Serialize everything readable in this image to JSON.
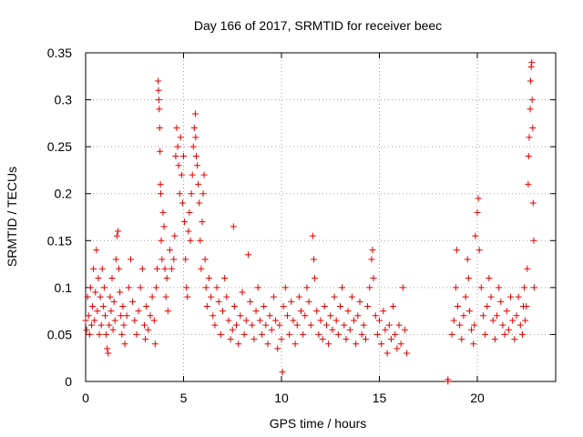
{
  "chart_data": {
    "type": "scatter",
    "title": "Day 166 of 2017, SRMTID for receiver beec",
    "xlabel": "GPS time / hours",
    "ylabel": "SRMTID / TECUs",
    "xlim": [
      0,
      24
    ],
    "ylim": [
      0,
      0.35
    ],
    "xticks": [
      0,
      5,
      10,
      15,
      20
    ],
    "xtick_labels": [
      "0",
      "5",
      "10",
      "15",
      "20"
    ],
    "yticks": [
      0,
      0.05,
      0.1,
      0.15,
      0.2,
      0.25,
      0.3,
      0.35
    ],
    "ytick_labels": [
      "0",
      "0.05",
      "0.1",
      "0.15",
      "0.2",
      "0.25",
      "0.3",
      "0.35"
    ],
    "grid": true,
    "marker": "+",
    "color": "#e00000",
    "series": [
      {
        "name": "SRMTID",
        "points": [
          [
            0.0,
            0.065
          ],
          [
            0.05,
            0.055
          ],
          [
            0.1,
            0.09
          ],
          [
            0.15,
            0.07
          ],
          [
            0.2,
            0.05
          ],
          [
            0.25,
            0.1
          ],
          [
            0.3,
            0.06
          ],
          [
            0.35,
            0.08
          ],
          [
            0.4,
            0.12
          ],
          [
            0.45,
            0.065
          ],
          [
            0.5,
            0.095
          ],
          [
            0.55,
            0.14
          ],
          [
            0.6,
            0.075
          ],
          [
            0.65,
            0.11
          ],
          [
            0.7,
            0.05
          ],
          [
            0.75,
            0.09
          ],
          [
            0.8,
            0.06
          ],
          [
            0.85,
            0.12
          ],
          [
            0.9,
            0.08
          ],
          [
            0.95,
            0.1
          ],
          [
            1.0,
            0.07
          ],
          [
            1.05,
            0.05
          ],
          [
            1.1,
            0.035
          ],
          [
            1.15,
            0.03
          ],
          [
            1.2,
            0.06
          ],
          [
            1.25,
            0.09
          ],
          [
            1.3,
            0.075
          ],
          [
            1.35,
            0.11
          ],
          [
            1.4,
            0.055
          ],
          [
            1.45,
            0.085
          ],
          [
            1.5,
            0.065
          ],
          [
            1.55,
            0.13
          ],
          [
            1.6,
            0.155
          ],
          [
            1.65,
            0.16
          ],
          [
            1.7,
            0.12
          ],
          [
            1.75,
            0.095
          ],
          [
            1.8,
            0.07
          ],
          [
            1.85,
            0.05
          ],
          [
            1.9,
            0.08
          ],
          [
            1.95,
            0.06
          ],
          [
            2.0,
            0.04
          ],
          [
            2.1,
            0.07
          ],
          [
            2.2,
            0.1
          ],
          [
            2.3,
            0.13
          ],
          [
            2.4,
            0.085
          ],
          [
            2.5,
            0.065
          ],
          [
            2.6,
            0.05
          ],
          [
            2.7,
            0.075
          ],
          [
            2.8,
            0.1
          ],
          [
            2.9,
            0.12
          ],
          [
            3.0,
            0.06
          ],
          [
            3.05,
            0.045
          ],
          [
            3.1,
            0.08
          ],
          [
            3.2,
            0.055
          ],
          [
            3.3,
            0.07
          ],
          [
            3.4,
            0.09
          ],
          [
            3.5,
            0.065
          ],
          [
            3.55,
            0.04
          ],
          [
            3.6,
            0.1
          ],
          [
            3.65,
            0.12
          ],
          [
            3.7,
            0.32
          ],
          [
            3.72,
            0.31
          ],
          [
            3.74,
            0.3
          ],
          [
            3.76,
            0.29
          ],
          [
            3.78,
            0.27
          ],
          [
            3.8,
            0.245
          ],
          [
            3.82,
            0.21
          ],
          [
            3.84,
            0.2
          ],
          [
            3.86,
            0.15
          ],
          [
            3.9,
            0.13
          ],
          [
            3.95,
            0.18
          ],
          [
            4.0,
            0.165
          ],
          [
            4.05,
            0.12
          ],
          [
            4.1,
            0.09
          ],
          [
            4.15,
            0.11
          ],
          [
            4.2,
            0.075
          ],
          [
            4.3,
            0.14
          ],
          [
            4.4,
            0.12
          ],
          [
            4.5,
            0.13
          ],
          [
            4.55,
            0.155
          ],
          [
            4.6,
            0.24
          ],
          [
            4.65,
            0.27
          ],
          [
            4.7,
            0.25
          ],
          [
            4.75,
            0.23
          ],
          [
            4.8,
            0.2
          ],
          [
            4.85,
            0.26
          ],
          [
            4.9,
            0.22
          ],
          [
            4.95,
            0.19
          ],
          [
            5.0,
            0.24
          ],
          [
            5.05,
            0.17
          ],
          [
            5.1,
            0.13
          ],
          [
            5.15,
            0.1
          ],
          [
            5.2,
            0.09
          ],
          [
            5.25,
            0.16
          ],
          [
            5.3,
            0.18
          ],
          [
            5.35,
            0.15
          ],
          [
            5.4,
            0.2
          ],
          [
            5.45,
            0.22
          ],
          [
            5.5,
            0.25
          ],
          [
            5.55,
            0.27
          ],
          [
            5.6,
            0.285
          ],
          [
            5.62,
            0.26
          ],
          [
            5.65,
            0.24
          ],
          [
            5.7,
            0.23
          ],
          [
            5.75,
            0.21
          ],
          [
            5.8,
            0.19
          ],
          [
            5.85,
            0.15
          ],
          [
            5.9,
            0.12
          ],
          [
            5.95,
            0.17
          ],
          [
            6.0,
            0.2
          ],
          [
            6.05,
            0.22
          ],
          [
            6.1,
            0.13
          ],
          [
            6.15,
            0.1
          ],
          [
            6.2,
            0.08
          ],
          [
            6.3,
            0.11
          ],
          [
            6.4,
            0.09
          ],
          [
            6.5,
            0.07
          ],
          [
            6.6,
            0.06
          ],
          [
            6.7,
            0.1
          ],
          [
            6.8,
            0.085
          ],
          [
            6.9,
            0.05
          ],
          [
            7.0,
            0.075
          ],
          [
            7.1,
            0.11
          ],
          [
            7.2,
            0.09
          ],
          [
            7.3,
            0.065
          ],
          [
            7.4,
            0.045
          ],
          [
            7.5,
            0.055
          ],
          [
            7.55,
            0.165
          ],
          [
            7.6,
            0.08
          ],
          [
            7.7,
            0.06
          ],
          [
            7.8,
            0.04
          ],
          [
            7.9,
            0.07
          ],
          [
            8.0,
            0.095
          ],
          [
            8.1,
            0.05
          ],
          [
            8.2,
            0.065
          ],
          [
            8.3,
            0.135
          ],
          [
            8.4,
            0.085
          ],
          [
            8.5,
            0.06
          ],
          [
            8.6,
            0.045
          ],
          [
            8.7,
            0.075
          ],
          [
            8.8,
            0.1
          ],
          [
            8.9,
            0.065
          ],
          [
            9.0,
            0.05
          ],
          [
            9.1,
            0.08
          ],
          [
            9.2,
            0.06
          ],
          [
            9.3,
            0.04
          ],
          [
            9.4,
            0.07
          ],
          [
            9.5,
            0.055
          ],
          [
            9.6,
            0.09
          ],
          [
            9.7,
            0.065
          ],
          [
            9.8,
            0.035
          ],
          [
            9.9,
            0.06
          ],
          [
            10.0,
            0.045
          ],
          [
            10.05,
            0.01
          ],
          [
            10.1,
            0.08
          ],
          [
            10.2,
            0.1
          ],
          [
            10.3,
            0.07
          ],
          [
            10.4,
            0.05
          ],
          [
            10.5,
            0.085
          ],
          [
            10.6,
            0.065
          ],
          [
            10.7,
            0.04
          ],
          [
            10.8,
            0.06
          ],
          [
            10.9,
            0.09
          ],
          [
            11.0,
            0.075
          ],
          [
            11.1,
            0.05
          ],
          [
            11.2,
            0.07
          ],
          [
            11.3,
            0.1
          ],
          [
            11.4,
            0.085
          ],
          [
            11.5,
            0.06
          ],
          [
            11.6,
            0.155
          ],
          [
            11.65,
            0.13
          ],
          [
            11.7,
            0.11
          ],
          [
            11.8,
            0.075
          ],
          [
            11.9,
            0.05
          ],
          [
            12.0,
            0.065
          ],
          [
            12.1,
            0.045
          ],
          [
            12.2,
            0.08
          ],
          [
            12.3,
            0.06
          ],
          [
            12.4,
            0.04
          ],
          [
            12.5,
            0.07
          ],
          [
            12.6,
            0.055
          ],
          [
            12.7,
            0.09
          ],
          [
            12.8,
            0.065
          ],
          [
            12.9,
            0.05
          ],
          [
            13.0,
            0.08
          ],
          [
            13.1,
            0.1
          ],
          [
            13.2,
            0.06
          ],
          [
            13.3,
            0.045
          ],
          [
            13.4,
            0.075
          ],
          [
            13.5,
            0.055
          ],
          [
            13.6,
            0.09
          ],
          [
            13.7,
            0.065
          ],
          [
            13.8,
            0.04
          ],
          [
            13.9,
            0.07
          ],
          [
            14.0,
            0.085
          ],
          [
            14.1,
            0.05
          ],
          [
            14.2,
            0.06
          ],
          [
            14.3,
            0.045
          ],
          [
            14.4,
            0.08
          ],
          [
            14.5,
            0.1
          ],
          [
            14.6,
            0.13
          ],
          [
            14.65,
            0.14
          ],
          [
            14.7,
            0.11
          ],
          [
            14.8,
            0.07
          ],
          [
            14.9,
            0.05
          ],
          [
            15.0,
            0.065
          ],
          [
            15.1,
            0.04
          ],
          [
            15.2,
            0.075
          ],
          [
            15.3,
            0.055
          ],
          [
            15.4,
            0.03
          ],
          [
            15.5,
            0.06
          ],
          [
            15.6,
            0.045
          ],
          [
            15.7,
            0.08
          ],
          [
            15.8,
            0.05
          ],
          [
            15.9,
            0.035
          ],
          [
            16.0,
            0.06
          ],
          [
            16.1,
            0.04
          ],
          [
            16.2,
            0.1
          ],
          [
            16.3,
            0.055
          ],
          [
            16.4,
            0.03
          ],
          [
            18.5,
            0.0
          ],
          [
            18.5,
            0.002
          ],
          [
            18.7,
            0.05
          ],
          [
            18.8,
            0.065
          ],
          [
            18.9,
            0.1
          ],
          [
            18.95,
            0.14
          ],
          [
            19.0,
            0.08
          ],
          [
            19.1,
            0.06
          ],
          [
            19.2,
            0.045
          ],
          [
            19.3,
            0.07
          ],
          [
            19.4,
            0.09
          ],
          [
            19.5,
            0.13
          ],
          [
            19.55,
            0.11
          ],
          [
            19.6,
            0.075
          ],
          [
            19.7,
            0.055
          ],
          [
            19.8,
            0.04
          ],
          [
            19.85,
            0.06
          ],
          [
            19.9,
            0.155
          ],
          [
            20.0,
            0.18
          ],
          [
            20.05,
            0.195
          ],
          [
            20.1,
            0.14
          ],
          [
            20.2,
            0.1
          ],
          [
            20.3,
            0.07
          ],
          [
            20.4,
            0.05
          ],
          [
            20.5,
            0.08
          ],
          [
            20.6,
            0.11
          ],
          [
            20.7,
            0.09
          ],
          [
            20.8,
            0.065
          ],
          [
            20.9,
            0.045
          ],
          [
            21.0,
            0.07
          ],
          [
            21.1,
            0.1
          ],
          [
            21.2,
            0.085
          ],
          [
            21.3,
            0.06
          ],
          [
            21.4,
            0.05
          ],
          [
            21.5,
            0.075
          ],
          [
            21.6,
            0.055
          ],
          [
            21.7,
            0.09
          ],
          [
            21.8,
            0.065
          ],
          [
            21.9,
            0.045
          ],
          [
            22.0,
            0.07
          ],
          [
            22.1,
            0.09
          ],
          [
            22.2,
            0.06
          ],
          [
            22.3,
            0.05
          ],
          [
            22.35,
            0.08
          ],
          [
            22.4,
            0.1
          ],
          [
            22.45,
            0.065
          ],
          [
            22.5,
            0.08
          ],
          [
            22.55,
            0.12
          ],
          [
            22.6,
            0.21
          ],
          [
            22.62,
            0.24
          ],
          [
            22.65,
            0.26
          ],
          [
            22.7,
            0.29
          ],
          [
            22.72,
            0.32
          ],
          [
            22.75,
            0.335
          ],
          [
            22.78,
            0.34
          ],
          [
            22.8,
            0.3
          ],
          [
            22.83,
            0.27
          ],
          [
            22.85,
            0.19
          ],
          [
            22.88,
            0.15
          ],
          [
            22.9,
            0.1
          ]
        ]
      }
    ]
  }
}
